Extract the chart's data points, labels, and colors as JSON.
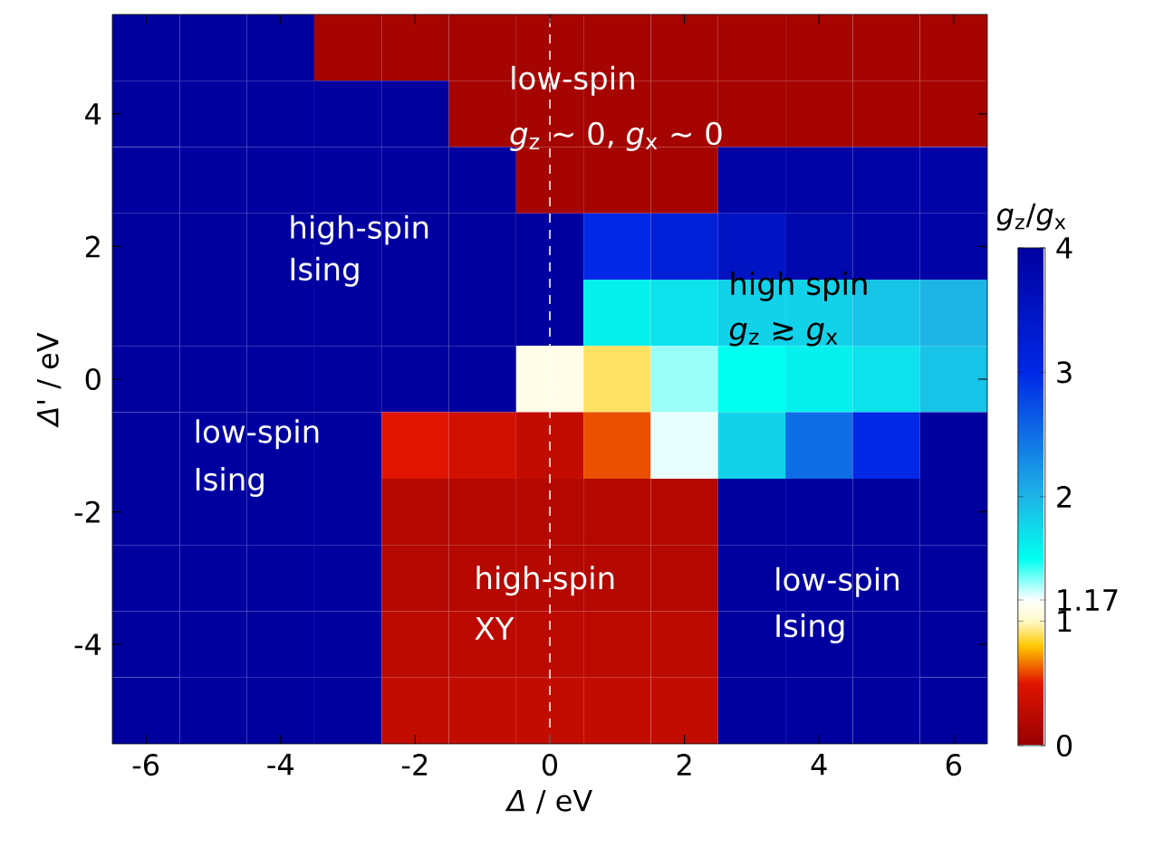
{
  "chart_data": {
    "type": "heatmap",
    "xlabel": "*Δ* / eV",
    "ylabel": "*Δ*' / eV",
    "clabel": "*g*$_{z}$/*g*$_{x}$",
    "categories": [
      "-6",
      null,
      "-4",
      null,
      "-2",
      null,
      "0",
      null,
      "2",
      null,
      "4",
      null,
      "6"
    ],
    "y_categories": [
      null,
      "4",
      null,
      "2",
      null,
      "0",
      null,
      "-2",
      null,
      "-4",
      null
    ],
    "clim": [
      0,
      4
    ],
    "cticks": [
      0,
      1,
      2,
      3,
      4,
      {
        "value": 1.17,
        "label": "1.17"
      }
    ],
    "cells": [
      [
        4,
        4,
        4,
        0.1,
        0.1,
        0.1,
        0.1,
        0.1,
        0.1,
        0.1,
        0.1,
        0.1,
        0.1
      ],
      [
        4,
        4,
        4,
        4,
        4,
        0.1,
        0.1,
        0.1,
        0.1,
        0.1,
        0.1,
        0.1,
        0.1
      ],
      [
        4,
        4,
        4,
        4,
        4,
        4,
        0.1,
        0.1,
        0.1,
        3.9,
        3.9,
        3.9,
        3.9
      ],
      [
        4,
        4,
        4,
        4,
        4,
        4,
        4,
        3,
        3.2,
        3.5,
        3.8,
        3.9,
        3.9
      ],
      [
        4,
        4,
        4,
        4,
        4,
        4,
        4,
        1.6,
        1.7,
        1.8,
        1.8,
        1.9,
        2
      ],
      [
        4,
        4,
        4,
        4,
        4,
        4,
        1.1,
        0.9,
        1.3,
        1.5,
        1.6,
        1.7,
        1.9
      ],
      [
        4,
        4,
        4,
        4,
        0.5,
        0.4,
        0.3,
        0.6,
        1.2,
        1.8,
        2.5,
        3,
        4
      ],
      [
        4,
        4,
        4,
        4,
        0.2,
        0.2,
        0.2,
        0.2,
        0.2,
        4,
        4,
        4,
        4
      ],
      [
        4,
        4,
        4,
        4,
        0.2,
        0.2,
        0.2,
        0.2,
        0.2,
        4,
        4,
        4,
        4
      ],
      [
        4,
        4,
        4,
        4,
        0.25,
        0.25,
        0.25,
        0.25,
        0.25,
        4,
        4,
        4,
        4
      ],
      [
        4,
        4,
        4,
        4,
        0.3,
        0.3,
        0.3,
        0.3,
        0.3,
        4,
        4,
        4,
        4
      ]
    ],
    "ref_lines": [
      {
        "axis": "x",
        "value": "0",
        "color": "#ffffff",
        "line_style": "dashed"
      }
    ],
    "annotations": [
      "low-spin",
      "*g*$_{z}$ ~ 0, *g*$_{x}$ ~ 0",
      "high-spin",
      "Ising",
      "high spin",
      "*g*$_{z}$ ≳ *g*$_{x}$",
      "low-spin",
      "Ising",
      "high-spin",
      "XY",
      "low-spin",
      "Ising"
    ]
  }
}
